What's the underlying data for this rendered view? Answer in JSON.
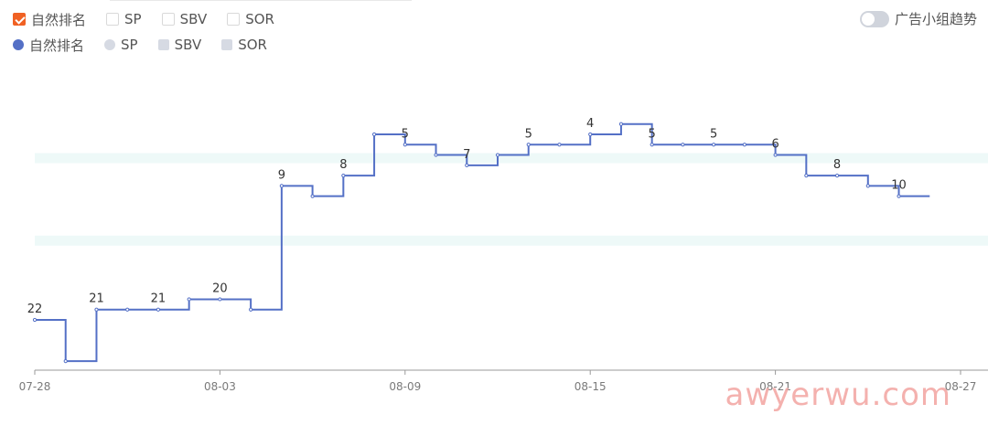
{
  "legend_checkboxes": [
    {
      "label": "自然排名",
      "checked": true
    },
    {
      "label": "SP",
      "checked": false
    },
    {
      "label": "SBV",
      "checked": false
    },
    {
      "label": "SOR",
      "checked": false
    }
  ],
  "legend_series": [
    {
      "label": "自然排名",
      "marker": "circle",
      "active": true
    },
    {
      "label": "SP",
      "marker": "circle",
      "active": false
    },
    {
      "label": "SBV",
      "marker": "square",
      "active": false
    },
    {
      "label": "SOR",
      "marker": "square",
      "active": false
    }
  ],
  "toggle": {
    "label": "广告小组趋势",
    "on": false
  },
  "colors": {
    "line": "#5470c6",
    "band": "#eef9f8",
    "axis": "#888888",
    "checkbox": "#f06123"
  },
  "watermark": "awyerwu.com",
  "chart_data": {
    "type": "line",
    "step": "start",
    "y_inverted": true,
    "ylim": [
      1,
      25
    ],
    "x_ticks": [
      "07-28",
      "08-03",
      "08-09",
      "08-15",
      "08-21",
      "08-27"
    ],
    "x_range": [
      "07-28",
      "08-27"
    ],
    "series": [
      {
        "name": "自然排名",
        "points": [
          {
            "x": "07-28",
            "y": 22
          },
          {
            "x": "07-29",
            "y": 26
          },
          {
            "x": "07-30",
            "y": 21
          },
          {
            "x": "07-31",
            "y": 21
          },
          {
            "x": "08-01",
            "y": 21
          },
          {
            "x": "08-02",
            "y": 20
          },
          {
            "x": "08-03",
            "y": 20
          },
          {
            "x": "08-04",
            "y": 21
          },
          {
            "x": "08-05",
            "y": 9
          },
          {
            "x": "08-06",
            "y": 10
          },
          {
            "x": "08-07",
            "y": 8
          },
          {
            "x": "08-08",
            "y": 4
          },
          {
            "x": "08-09",
            "y": 5
          },
          {
            "x": "08-10",
            "y": 6
          },
          {
            "x": "08-11",
            "y": 7
          },
          {
            "x": "08-12",
            "y": 6
          },
          {
            "x": "08-13",
            "y": 5
          },
          {
            "x": "08-14",
            "y": 5
          },
          {
            "x": "08-15",
            "y": 4
          },
          {
            "x": "08-16",
            "y": 3
          },
          {
            "x": "08-17",
            "y": 5
          },
          {
            "x": "08-18",
            "y": 5
          },
          {
            "x": "08-19",
            "y": 5
          },
          {
            "x": "08-20",
            "y": 5
          },
          {
            "x": "08-21",
            "y": 6
          },
          {
            "x": "08-22",
            "y": 8
          },
          {
            "x": "08-23",
            "y": 8
          },
          {
            "x": "08-24",
            "y": 9
          },
          {
            "x": "08-25",
            "y": 10
          }
        ],
        "labels": [
          {
            "x": "07-28",
            "text": "22"
          },
          {
            "x": "07-30",
            "text": "21"
          },
          {
            "x": "08-01",
            "text": "21"
          },
          {
            "x": "08-03",
            "text": "20"
          },
          {
            "x": "08-05",
            "text": "9"
          },
          {
            "x": "08-07",
            "text": "8"
          },
          {
            "x": "08-09",
            "text": "5"
          },
          {
            "x": "08-11",
            "text": "7"
          },
          {
            "x": "08-13",
            "text": "5"
          },
          {
            "x": "08-15",
            "text": "4"
          },
          {
            "x": "08-17",
            "text": "5"
          },
          {
            "x": "08-19",
            "text": "5"
          },
          {
            "x": "08-21",
            "text": "6"
          },
          {
            "x": "08-23",
            "text": "8"
          },
          {
            "x": "08-25",
            "text": "10"
          }
        ]
      }
    ],
    "bands_y": [
      [
        6,
        7
      ],
      [
        14,
        15
      ]
    ]
  }
}
